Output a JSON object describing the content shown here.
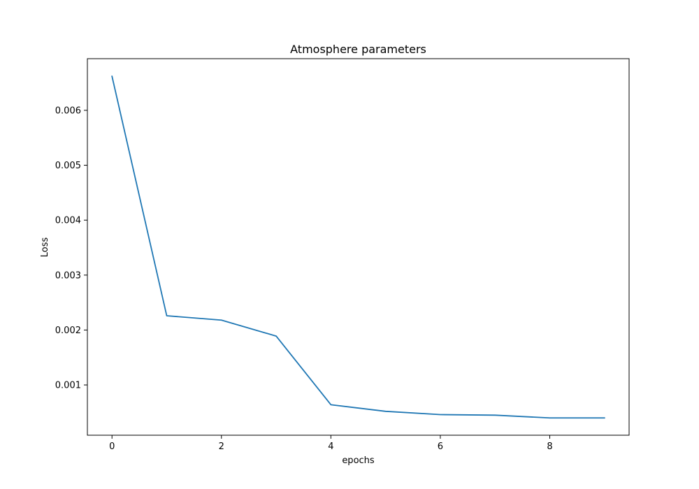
{
  "chart_data": {
    "type": "line",
    "title": "Atmosphere parameters",
    "xlabel": "epochs",
    "ylabel": "Loss",
    "xlim": [
      -0.45,
      9.45
    ],
    "ylim": [
      8.5e-05,
      0.00694
    ],
    "grid": false,
    "x_ticks": [
      0,
      2,
      4,
      6,
      8
    ],
    "x_tick_labels": [
      "0",
      "2",
      "4",
      "6",
      "8"
    ],
    "y_ticks": [
      0.001,
      0.002,
      0.003,
      0.004,
      0.005,
      0.006
    ],
    "y_tick_labels": [
      "0.001",
      "0.002",
      "0.003",
      "0.004",
      "0.005",
      "0.006"
    ],
    "series": [
      {
        "color": "#1f77b4",
        "x": [
          0,
          1,
          2,
          3,
          4,
          5,
          6,
          7,
          8,
          9
        ],
        "values": [
          0.00662,
          0.00226,
          0.00218,
          0.00189,
          0.00064,
          0.00052,
          0.00046,
          0.00045,
          0.0004,
          0.0004
        ]
      }
    ]
  }
}
